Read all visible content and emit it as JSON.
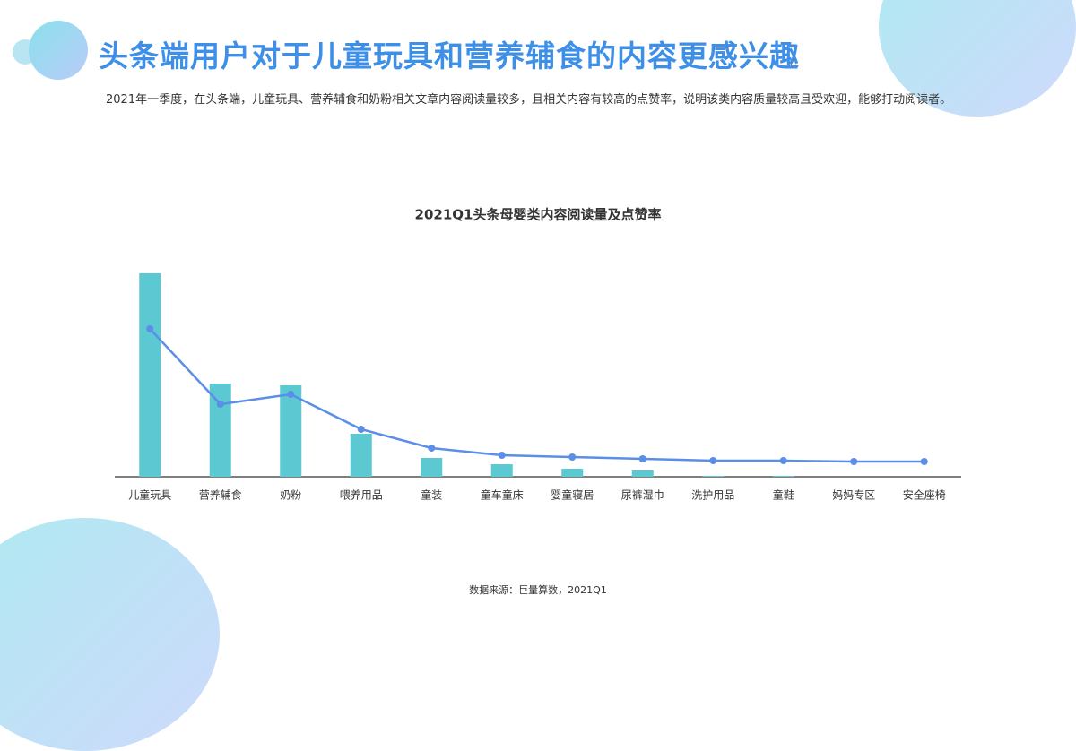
{
  "header": {
    "title": "头条端用户对于儿童玩具和营养辅食的内容更感兴趣",
    "description": "2021年一季度，在头条端，儿童玩具、营养辅食和奶粉相关文章内容阅读量较多，且相关内容有较高的点赞率，说明该类内容质量较高且受欢迎，能够打动阅读者。"
  },
  "chart_data": {
    "type": "bar_line",
    "title": "2021Q1头条母婴类内容阅读量及点赞率",
    "categories": [
      "儿童玩具",
      "营养辅食",
      "奶粉",
      "喂养用品",
      "童装",
      "童车童床",
      "婴童寝居",
      "尿裤湿巾",
      "洗护用品",
      "童鞋",
      "妈妈专区",
      "安全座椅"
    ],
    "series": [
      {
        "type": "bar",
        "color": "#5bc8d2",
        "values": [
          227,
          104,
          102,
          48,
          21,
          14,
          9,
          7,
          1,
          1,
          0,
          0
        ]
      },
      {
        "type": "line",
        "axis": "y2",
        "color": "#5b8ee6",
        "values": [
          165,
          81,
          92,
          53,
          32,
          24,
          22,
          20,
          18,
          18,
          17,
          17
        ]
      }
    ],
    "ylim": [
      0,
      240
    ],
    "y2lim": [
      0,
      240
    ],
    "source": "数据来源：巨量算数，2021Q1"
  }
}
